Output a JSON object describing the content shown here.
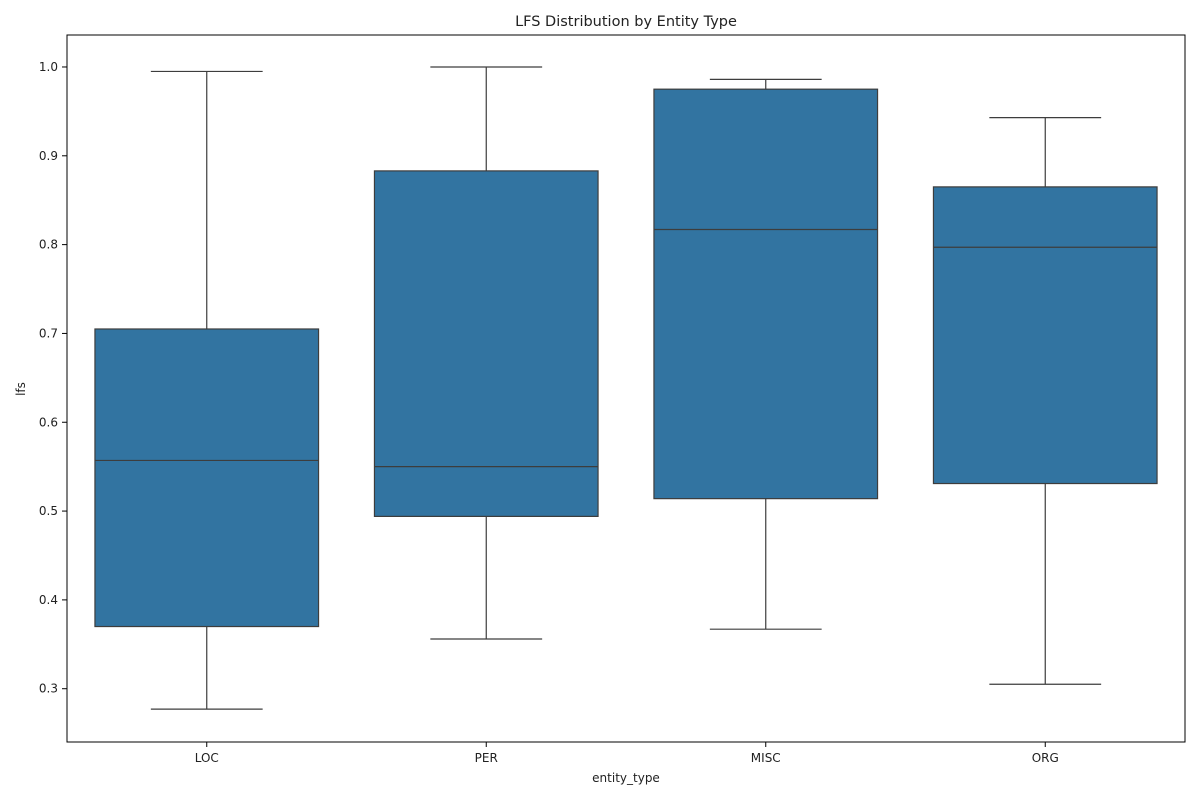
{
  "chart_data": {
    "type": "boxplot",
    "title": "LFS Distribution by Entity Type",
    "xlabel": "entity_type",
    "ylabel": "lfs",
    "ylim": [
      0.24,
      1.036
    ],
    "yticks": [
      "0.3",
      "0.4",
      "0.5",
      "0.6",
      "0.7",
      "0.8",
      "0.9",
      "1.0"
    ],
    "ytick_values": [
      0.3,
      0.4,
      0.5,
      0.6,
      0.7,
      0.8,
      0.9,
      1.0
    ],
    "categories": [
      "LOC",
      "PER",
      "MISC",
      "ORG"
    ],
    "boxes": [
      {
        "category": "LOC",
        "whisker_low": 0.277,
        "q1": 0.37,
        "median": 0.557,
        "q3": 0.705,
        "whisker_high": 0.995
      },
      {
        "category": "PER",
        "whisker_low": 0.356,
        "q1": 0.494,
        "median": 0.55,
        "q3": 0.883,
        "whisker_high": 1.0
      },
      {
        "category": "MISC",
        "whisker_low": 0.367,
        "q1": 0.514,
        "median": 0.817,
        "q3": 0.975,
        "whisker_high": 0.986
      },
      {
        "category": "ORG",
        "whisker_low": 0.305,
        "q1": 0.531,
        "median": 0.797,
        "q3": 0.865,
        "whisker_high": 0.943
      }
    ],
    "box_color": "#3274a1",
    "line_color": "#3d3d3d",
    "grid": false,
    "legend": "none"
  }
}
